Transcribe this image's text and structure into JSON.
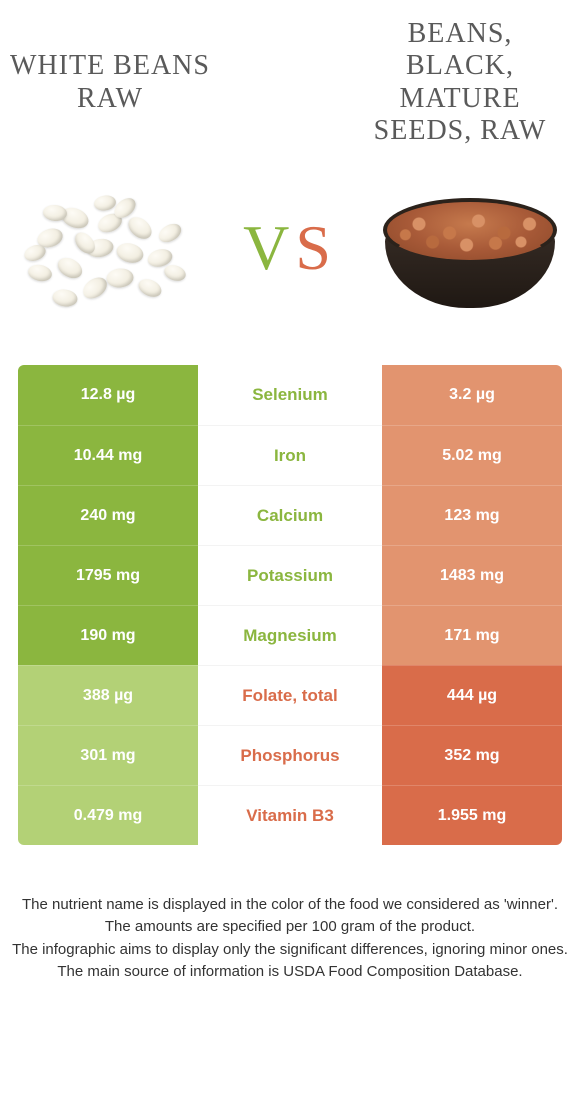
{
  "colors": {
    "left_food": "#8bb63f",
    "left_food_faded": "#b3d176",
    "right_food": "#d96c4a",
    "right_food_faded": "#e2946f",
    "text_gray": "#5a5a5a",
    "body_text": "#333333",
    "background": "#ffffff"
  },
  "fonts": {
    "title_family": "Georgia, serif",
    "title_size_pt": 21,
    "body_family": "Arial, sans-serif",
    "cell_size_pt": 12,
    "footer_size_pt": 11
  },
  "header": {
    "left_title": "WHITE BEANS RAW",
    "right_title": "BEANS, BLACK, MATURE SEEDS, RAW",
    "vs_v": "V",
    "vs_s": "S"
  },
  "table": {
    "type": "comparison-table",
    "columns": [
      "left_value",
      "nutrient",
      "right_value"
    ],
    "rows": [
      {
        "nutrient": "Selenium",
        "left": "12.8 µg",
        "right": "3.2 µg",
        "winner": "left"
      },
      {
        "nutrient": "Iron",
        "left": "10.44 mg",
        "right": "5.02 mg",
        "winner": "left"
      },
      {
        "nutrient": "Calcium",
        "left": "240 mg",
        "right": "123 mg",
        "winner": "left"
      },
      {
        "nutrient": "Potassium",
        "left": "1795 mg",
        "right": "1483 mg",
        "winner": "left"
      },
      {
        "nutrient": "Magnesium",
        "left": "190 mg",
        "right": "171 mg",
        "winner": "left"
      },
      {
        "nutrient": "Folate, total",
        "left": "388 µg",
        "right": "444 µg",
        "winner": "right"
      },
      {
        "nutrient": "Phosphorus",
        "left": "301 mg",
        "right": "352 mg",
        "winner": "right"
      },
      {
        "nutrient": "Vitamin B3",
        "left": "0.479 mg",
        "right": "1.955 mg",
        "winner": "right"
      }
    ]
  },
  "footer": {
    "line1": "The nutrient name is displayed in the color of the food we considered as 'winner'.",
    "line2": "The amounts are specified per 100 gram of the product.",
    "line3": "The infographic aims to display only the significant differences, ignoring minor ones.",
    "line4": "The main source of information is USDA Food Composition Database."
  },
  "beans_positions": [
    [
      30,
      60,
      26,
      18,
      -18
    ],
    [
      55,
      40,
      28,
      19,
      22
    ],
    [
      80,
      70,
      27,
      18,
      -10
    ],
    [
      50,
      90,
      26,
      18,
      30
    ],
    [
      90,
      45,
      25,
      17,
      -25
    ],
    [
      110,
      75,
      27,
      19,
      15
    ],
    [
      75,
      110,
      26,
      18,
      -35
    ],
    [
      45,
      120,
      25,
      17,
      8
    ],
    [
      120,
      50,
      26,
      18,
      40
    ],
    [
      140,
      80,
      25,
      17,
      -15
    ],
    [
      100,
      100,
      27,
      19,
      -5
    ],
    [
      130,
      110,
      24,
      16,
      25
    ],
    [
      20,
      95,
      24,
      16,
      12
    ],
    [
      150,
      55,
      24,
      16,
      -30
    ],
    [
      65,
      65,
      24,
      16,
      50
    ],
    [
      105,
      30,
      24,
      16,
      -40
    ],
    [
      35,
      35,
      24,
      16,
      5
    ],
    [
      15,
      75,
      22,
      15,
      -20
    ],
    [
      155,
      95,
      22,
      15,
      18
    ],
    [
      85,
      25,
      22,
      15,
      -8
    ]
  ]
}
